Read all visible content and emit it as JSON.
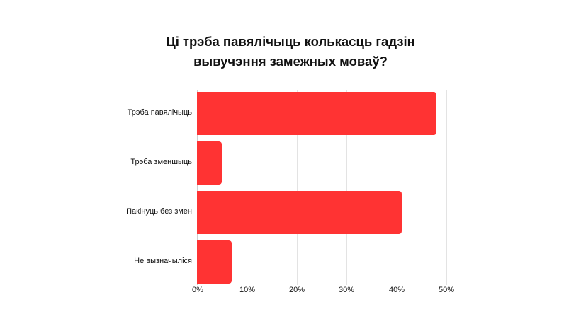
{
  "chart_data": {
    "type": "bar",
    "orientation": "horizontal",
    "title": "Ці трэба павялічыць колькасць гадзін вывучэння замежных моваў?",
    "title_lines": [
      "Ці трэба павялічыць колькасць гадзін",
      "вывучэння замежных моваў?"
    ],
    "categories": [
      "Трэба павялічыць",
      "Трэба зменшыць",
      "Пакінуць без змен",
      "Не вызначыліся"
    ],
    "values": [
      48,
      5,
      41,
      7
    ],
    "unit": "%",
    "xlabel": "",
    "ylabel": "",
    "xlim": [
      0,
      50
    ],
    "x_ticks": [
      "0%",
      "10%",
      "20%",
      "30%",
      "40%",
      "50%"
    ],
    "grid": true,
    "legend": null,
    "bar_color": "#ff3333"
  }
}
